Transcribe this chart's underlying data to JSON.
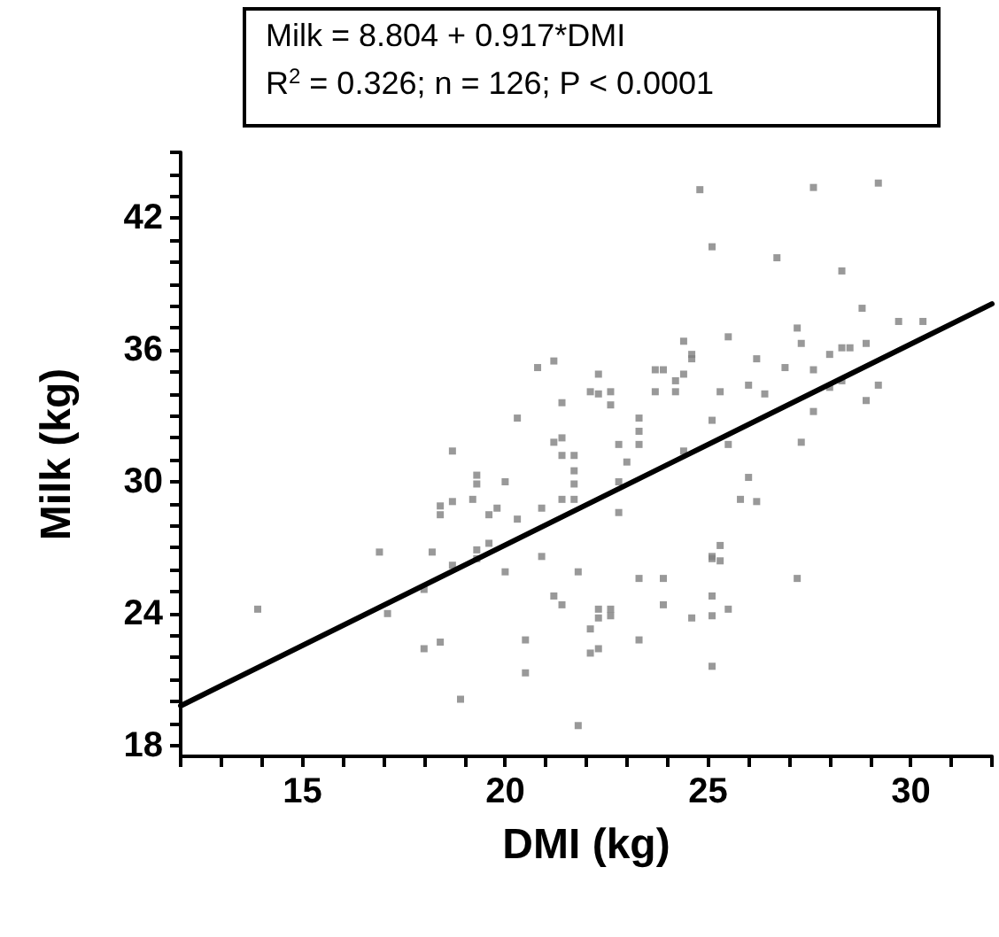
{
  "chart_data": {
    "type": "scatter",
    "xlabel": "DMI (kg)",
    "ylabel": "Milk (kg)",
    "annotations": [
      "Milk = 8.804 + 0.917*DMI",
      "R$^{2}$ = 0.326; n = 126; P < 0.0001"
    ],
    "xlim": [
      12,
      32
    ],
    "ylim": [
      17.5,
      45
    ],
    "xticks": [
      {
        "value": 12,
        "label": null
      },
      {
        "value": 13,
        "label": null
      },
      {
        "value": 14,
        "label": null
      },
      15,
      {
        "value": 16,
        "label": null
      },
      {
        "value": 17,
        "label": null
      },
      {
        "value": 18,
        "label": null
      },
      {
        "value": 19,
        "label": null
      },
      20,
      {
        "value": 21,
        "label": null
      },
      {
        "value": 22,
        "label": null
      },
      {
        "value": 23,
        "label": null
      },
      {
        "value": 24,
        "label": null
      },
      25,
      {
        "value": 26,
        "label": null
      },
      {
        "value": 27,
        "label": null
      },
      {
        "value": 28,
        "label": null
      },
      {
        "value": 29,
        "label": null
      },
      30,
      {
        "value": 31,
        "label": null
      },
      {
        "value": 32,
        "label": null
      }
    ],
    "yticks": [
      18,
      {
        "value": 19,
        "label": null
      },
      {
        "value": 20,
        "label": null
      },
      {
        "value": 21,
        "label": null
      },
      {
        "value": 22,
        "label": null
      },
      {
        "value": 23,
        "label": null
      },
      24,
      {
        "value": 25,
        "label": null
      },
      {
        "value": 26,
        "label": null
      },
      {
        "value": 27,
        "label": null
      },
      {
        "value": 28,
        "label": null
      },
      {
        "value": 29,
        "label": null
      },
      30,
      {
        "value": 31,
        "label": null
      },
      {
        "value": 32,
        "label": null
      },
      {
        "value": 33,
        "label": null
      },
      {
        "value": 34,
        "label": null
      },
      {
        "value": 35,
        "label": null
      },
      36,
      {
        "value": 37,
        "label": null
      },
      {
        "value": 38,
        "label": null
      },
      {
        "value": 39,
        "label": null
      },
      {
        "value": 40,
        "label": null
      },
      {
        "value": 41,
        "label": null
      },
      42,
      {
        "value": 43,
        "label": null
      },
      {
        "value": 44,
        "label": null
      },
      {
        "value": 45,
        "label": null
      }
    ],
    "grid": false,
    "marker": "square",
    "series": [
      {
        "color": "#808080",
        "x": [
          13.9,
          16.9,
          17.1,
          18.2,
          18.0,
          18.0,
          18.4,
          18.4,
          18.4,
          18.7,
          18.7,
          18.7,
          18.9,
          19.2,
          19.3,
          19.3,
          19.3,
          19.3,
          19.6,
          19.6,
          19.8,
          20.0,
          20.0,
          20.3,
          20.3,
          20.5,
          20.5,
          20.8,
          20.9,
          20.9,
          21.2,
          21.2,
          21.2,
          21.4,
          21.4,
          21.4,
          21.4,
          21.4,
          21.7,
          21.7,
          21.7,
          21.7,
          21.8,
          21.8,
          22.1,
          22.1,
          22.1,
          22.3,
          22.3,
          22.3,
          22.3,
          22.3,
          22.6,
          22.6,
          22.6,
          22.6,
          22.8,
          22.8,
          22.8,
          23.0,
          23.3,
          23.3,
          23.3,
          23.3,
          23.3,
          23.7,
          23.7,
          23.9,
          23.9,
          23.9,
          24.2,
          24.2,
          24.4,
          24.4,
          24.4,
          24.6,
          24.6,
          24.6,
          24.8,
          25.1,
          25.1,
          25.1,
          25.1,
          25.1,
          25.1,
          25.1,
          25.3,
          25.3,
          25.3,
          25.5,
          25.5,
          25.5,
          25.8,
          26.0,
          26.0,
          26.2,
          26.2,
          26.4,
          26.7,
          26.9,
          27.2,
          27.2,
          27.3,
          27.3,
          27.6,
          27.6,
          27.6,
          28.0,
          28.0,
          28.3,
          28.3,
          28.3,
          28.5,
          28.8,
          28.9,
          28.9,
          29.2,
          29.2,
          29.7,
          30.3
        ],
        "values": [
          24.2,
          26.8,
          24.0,
          26.8,
          25.1,
          22.4,
          22.7,
          28.9,
          28.5,
          31.4,
          29.1,
          26.2,
          20.1,
          29.2,
          30.3,
          29.9,
          26.9,
          26.5,
          28.5,
          27.2,
          28.8,
          30.0,
          25.9,
          32.9,
          28.3,
          22.8,
          21.3,
          35.2,
          28.8,
          26.6,
          35.5,
          31.8,
          24.8,
          33.6,
          32.0,
          31.2,
          29.2,
          24.4,
          31.2,
          30.5,
          29.9,
          29.2,
          25.9,
          18.9,
          34.1,
          23.3,
          22.2,
          34.9,
          34.0,
          24.2,
          23.8,
          22.4,
          34.1,
          33.5,
          24.2,
          23.9,
          31.7,
          30.0,
          28.6,
          30.9,
          32.9,
          32.3,
          31.7,
          25.6,
          22.8,
          35.1,
          34.1,
          35.1,
          25.6,
          24.4,
          34.6,
          34.1,
          36.4,
          34.9,
          31.4,
          35.8,
          35.6,
          23.8,
          43.3,
          40.7,
          32.8,
          26.6,
          26.5,
          24.8,
          23.9,
          21.6,
          34.1,
          27.1,
          26.4,
          36.6,
          31.7,
          24.2,
          29.2,
          34.4,
          30.2,
          35.6,
          29.1,
          34.0,
          40.2,
          35.2,
          37.0,
          25.6,
          36.3,
          31.8,
          43.4,
          35.1,
          33.2,
          35.8,
          34.3,
          39.6,
          36.1,
          34.6,
          36.1,
          37.9,
          36.3,
          33.7,
          43.6,
          34.4,
          37.3,
          37.3
        ]
      },
      {
        "type": "line",
        "color": "#000000",
        "x": [
          12,
          32
        ],
        "values": [
          19.8,
          38.1
        ],
        "marker": "none",
        "line_style": "solid"
      }
    ]
  }
}
